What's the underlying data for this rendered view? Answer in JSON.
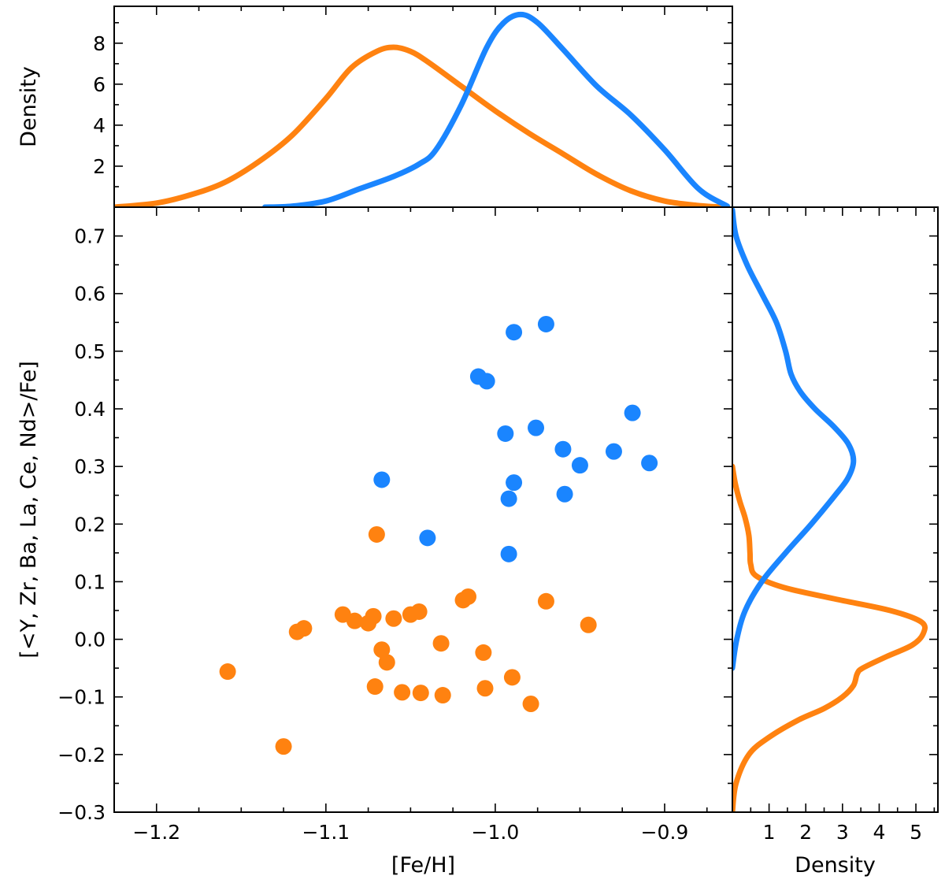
{
  "chart_data": [
    {
      "panel": "scatter",
      "type": "scatter",
      "xlabel": "[Fe/H]",
      "ylabel": "[<Y, Zr, Ba, La, Ce, Nd>/Fe]",
      "xlim": [
        -1.225,
        -0.86
      ],
      "ylim": [
        -0.3,
        0.75
      ],
      "xticks": [
        -1.2,
        -1.1,
        -1.0,
        -0.9
      ],
      "xtick_labels": [
        "−1.2",
        "−1.1",
        "−1.0",
        "−0.9"
      ],
      "yticks": [
        -0.3,
        -0.2,
        -0.1,
        0.0,
        0.1,
        0.2,
        0.3,
        0.4,
        0.5,
        0.6,
        0.7
      ],
      "ytick_labels": [
        "−0.3",
        "−0.2",
        "−0.1",
        "0.0",
        "0.1",
        "0.2",
        "0.3",
        "0.4",
        "0.5",
        "0.6",
        "0.7"
      ],
      "series": [
        {
          "name": "blue",
          "color": "#1a85ff",
          "x": [
            -0.97,
            -0.989,
            -1.01,
            -1.005,
            -0.919,
            -0.994,
            -0.976,
            -0.96,
            -0.93,
            -0.95,
            -0.909,
            -1.067,
            -0.989,
            -0.959,
            -0.992,
            -1.04,
            -0.992
          ],
          "y": [
            0.547,
            0.533,
            0.456,
            0.448,
            0.393,
            0.357,
            0.367,
            0.33,
            0.326,
            0.302,
            0.306,
            0.277,
            0.272,
            0.252,
            0.244,
            0.176,
            0.148
          ]
        },
        {
          "name": "orange",
          "color": "#ff8210",
          "x": [
            -1.07,
            -1.019,
            -1.016,
            -0.97,
            -1.09,
            -1.083,
            -1.075,
            -1.072,
            -1.06,
            -1.05,
            -1.045,
            -0.945,
            -1.117,
            -1.113,
            -1.032,
            -1.067,
            -1.007,
            -1.064,
            -1.158,
            -1.071,
            -1.055,
            -1.044,
            -1.031,
            -1.006,
            -0.99,
            -0.979,
            -1.125
          ],
          "y": [
            0.182,
            0.068,
            0.074,
            0.066,
            0.043,
            0.032,
            0.028,
            0.04,
            0.036,
            0.043,
            0.048,
            0.025,
            0.013,
            0.019,
            -0.007,
            -0.018,
            -0.023,
            -0.04,
            -0.056,
            -0.082,
            -0.092,
            -0.093,
            -0.097,
            -0.085,
            -0.066,
            -0.112,
            -0.186
          ]
        }
      ]
    },
    {
      "panel": "top-density",
      "type": "line",
      "ylabel": "Density",
      "ylim": [
        0,
        9.8
      ],
      "yticks": [
        2,
        4,
        6,
        8
      ],
      "ytick_labels": [
        "2",
        "4",
        "6",
        "8"
      ],
      "series": [
        {
          "name": "blue-kde",
          "color": "#1a85ff",
          "x": [
            -1.136,
            -1.12,
            -1.1,
            -1.08,
            -1.06,
            -1.045,
            -1.035,
            -1.02,
            -1.005,
            -0.995,
            -0.985,
            -0.975,
            -0.96,
            -0.94,
            -0.92,
            -0.9,
            -0.88,
            -0.863
          ],
          "y": [
            0.0,
            0.05,
            0.3,
            0.9,
            1.5,
            2.1,
            2.8,
            5.0,
            7.8,
            9.0,
            9.4,
            9.0,
            7.7,
            5.9,
            4.5,
            2.8,
            0.9,
            0.05
          ]
        },
        {
          "name": "orange-kde",
          "color": "#ff8210",
          "x": [
            -1.225,
            -1.2,
            -1.18,
            -1.16,
            -1.14,
            -1.12,
            -1.1,
            -1.085,
            -1.07,
            -1.06,
            -1.05,
            -1.04,
            -1.02,
            -1.0,
            -0.98,
            -0.96,
            -0.94,
            -0.92,
            -0.9,
            -0.88,
            -0.865
          ],
          "y": [
            0.0,
            0.2,
            0.6,
            1.2,
            2.2,
            3.5,
            5.3,
            6.8,
            7.6,
            7.8,
            7.6,
            7.1,
            5.9,
            4.7,
            3.6,
            2.6,
            1.6,
            0.8,
            0.3,
            0.08,
            0.0
          ]
        }
      ]
    },
    {
      "panel": "right-density",
      "type": "line",
      "xlabel": "Density",
      "xlim": [
        0,
        5.6
      ],
      "xticks": [
        1,
        2,
        3,
        4,
        5
      ],
      "xtick_labels": [
        "1",
        "2",
        "3",
        "4",
        "5"
      ],
      "series": [
        {
          "name": "blue-kde",
          "color": "#1a85ff",
          "y": [
            -0.05,
            0.0,
            0.05,
            0.1,
            0.15,
            0.2,
            0.25,
            0.28,
            0.31,
            0.34,
            0.37,
            0.4,
            0.43,
            0.46,
            0.5,
            0.55,
            0.6,
            0.65,
            0.7,
            0.745
          ],
          "x": [
            0.0,
            0.12,
            0.35,
            0.8,
            1.45,
            2.15,
            2.8,
            3.15,
            3.3,
            3.15,
            2.75,
            2.25,
            1.85,
            1.6,
            1.45,
            1.2,
            0.8,
            0.4,
            0.1,
            0.0
          ]
        },
        {
          "name": "orange-kde",
          "color": "#ff8210",
          "y": [
            -0.3,
            -0.25,
            -0.2,
            -0.17,
            -0.14,
            -0.12,
            -0.1,
            -0.08,
            -0.06,
            -0.05,
            -0.03,
            -0.01,
            0.01,
            0.03,
            0.05,
            0.07,
            0.09,
            0.11,
            0.13,
            0.15,
            0.18,
            0.21,
            0.24,
            0.27,
            0.3
          ],
          "x": [
            0.0,
            0.1,
            0.45,
            1.0,
            1.8,
            2.5,
            3.0,
            3.3,
            3.4,
            3.55,
            4.2,
            4.9,
            5.2,
            5.15,
            4.3,
            2.8,
            1.4,
            0.65,
            0.5,
            0.48,
            0.45,
            0.35,
            0.2,
            0.08,
            0.0
          ]
        }
      ]
    }
  ]
}
